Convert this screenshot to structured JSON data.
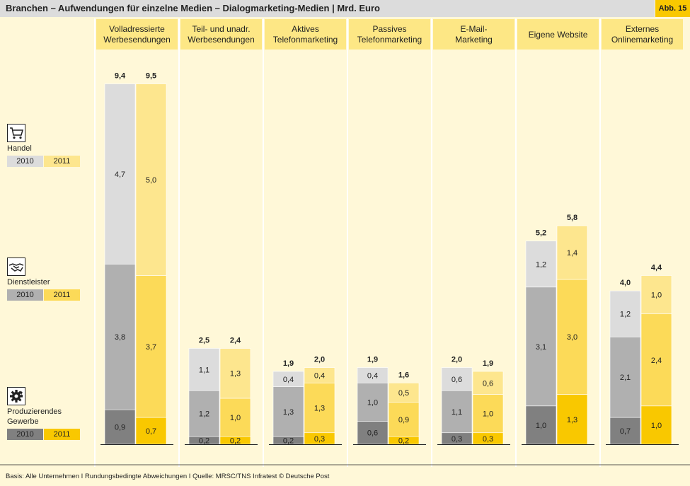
{
  "header": {
    "title": "Branchen – Aufwendungen für einzelne Medien – Dialogmarketing-Medien | Mrd. Euro",
    "badge": "Abb. 15"
  },
  "footer": "Basis: Alle Unternehmen I Rundungsbedingte Abweichungen I Quelle: MRSC/TNS Infratest © Deutsche Post",
  "legend": [
    {
      "name": "Handel",
      "icon": "shopping-cart-icon",
      "year_a": "2010",
      "year_b": "2011"
    },
    {
      "name": "Dienstleister",
      "icon": "handshake-icon",
      "year_a": "2010",
      "year_b": "2011"
    },
    {
      "name": "Produzierendes Gewerbe",
      "name_lines": [
        "Produzierendes",
        "Gewerbe"
      ],
      "icon": "gear-icon",
      "year_a": "2010",
      "year_b": "2011"
    }
  ],
  "colors": {
    "background": "#fff8d8",
    "column_header": "#fde785",
    "gray_handel": "#dcdcdc",
    "gray_dienstleister": "#b0b0b0",
    "gray_produzierendes": "#808080",
    "yellow_handel": "#fde68e",
    "yellow_dienstleister": "#fcda58",
    "yellow_produzierendes": "#f9c800"
  },
  "chart_data": {
    "type": "bar",
    "stacked": true,
    "unit": "Mrd. Euro",
    "categories": [
      [
        "Volladressierte",
        "Werbesendungen"
      ],
      [
        "Teil- und unadr.",
        "Werbesendungen"
      ],
      [
        "Aktives",
        "Telefonmarketing"
      ],
      [
        "Passives",
        "Telefonmarketing"
      ],
      [
        "E-Mail-",
        "Marketing"
      ],
      [
        "Eigene Website"
      ],
      [
        "Externes",
        "Onlinemarketing"
      ]
    ],
    "years": [
      "2010",
      "2011"
    ],
    "stack_order": [
      "Produzierendes Gewerbe",
      "Dienstleister",
      "Handel"
    ],
    "series": [
      {
        "name": "2010",
        "totals": [
          "9,4",
          "2,5",
          "1,9",
          "1,9",
          "2,0",
          "5,2",
          "4,0"
        ],
        "segments": {
          "Produzierendes Gewerbe": [
            "0,9",
            "0,2",
            "0,2",
            "0,6",
            "0,3",
            "1,0",
            "0,7"
          ],
          "Dienstleister": [
            "3,8",
            "1,2",
            "1,3",
            "1,0",
            "1,1",
            "3,1",
            "2,1"
          ],
          "Handel": [
            "4,7",
            "1,1",
            "0,4",
            "0,4",
            "0,6",
            "1,2",
            "1,2"
          ]
        }
      },
      {
        "name": "2011",
        "totals": [
          "9,5",
          "2,4",
          "2,0",
          "1,6",
          "1,9",
          "5,8",
          "4,4"
        ],
        "segments": {
          "Produzierendes Gewerbe": [
            "0,7",
            "0,2",
            "0,3",
            "0,2",
            "0,3",
            "1,3",
            "1,0"
          ],
          "Dienstleister": [
            "3,7",
            "1,0",
            "1,3",
            "0,9",
            "1,0",
            "3,0",
            "2,4"
          ],
          "Handel": [
            "5,0",
            "1,3",
            "0,4",
            "0,5",
            "0,6",
            "1,4",
            "1,0"
          ]
        }
      }
    ]
  }
}
